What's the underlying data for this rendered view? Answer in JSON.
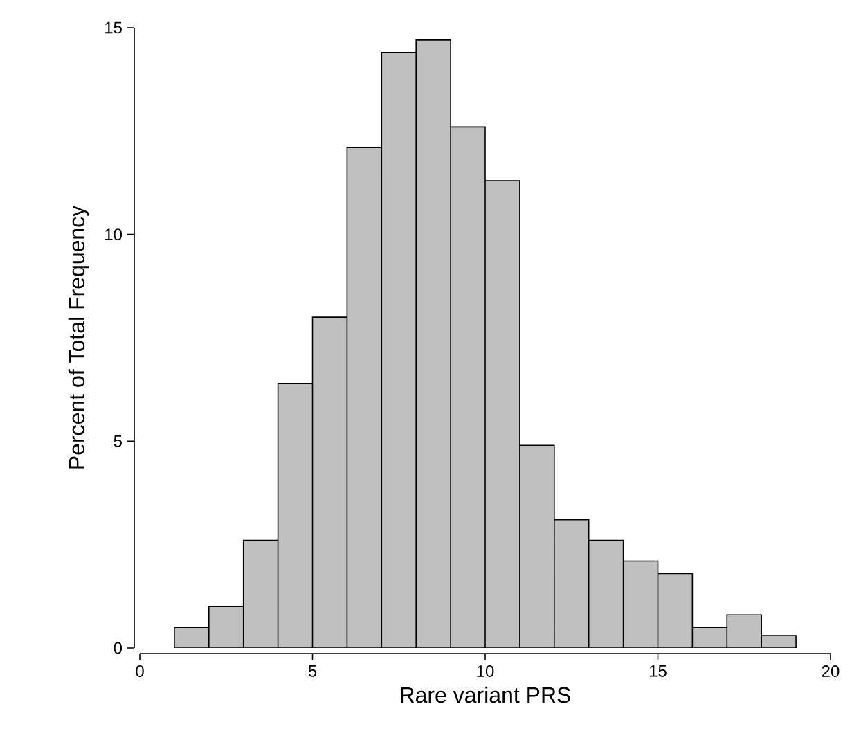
{
  "chart_data": {
    "type": "histogram",
    "xlabel": "Rare variant PRS",
    "ylabel": "Percent of Total Frequency",
    "bins": [
      1,
      2,
      3,
      4,
      5,
      6,
      7,
      8,
      9,
      10,
      11,
      12,
      13,
      14,
      15,
      16,
      17,
      18,
      19
    ],
    "values": [
      0.5,
      1.0,
      2.6,
      6.4,
      8.0,
      12.1,
      14.4,
      14.7,
      12.6,
      11.3,
      4.9,
      3.1,
      2.6,
      2.1,
      1.8,
      0.5,
      0.8,
      0.3
    ],
    "color": "#c0c0c0",
    "xlim": [
      0,
      20
    ],
    "ylim": [
      0,
      15
    ],
    "xticks": [
      0,
      5,
      10,
      15,
      20
    ],
    "yticks": [
      0,
      5,
      10,
      15
    ]
  }
}
